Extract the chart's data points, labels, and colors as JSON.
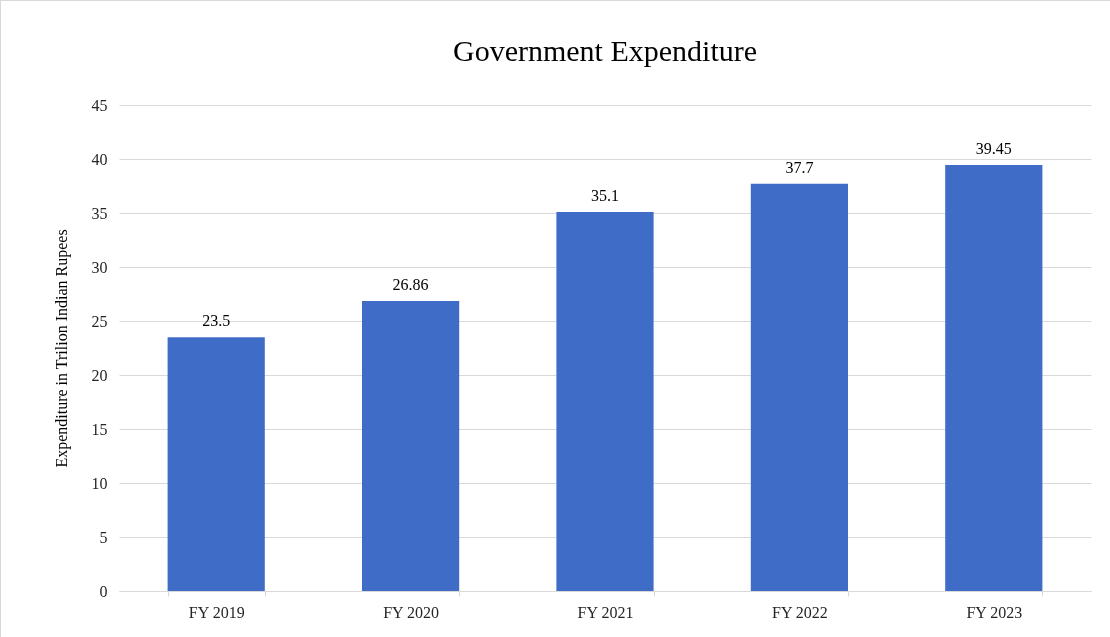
{
  "chart_data": {
    "type": "bar",
    "title": "Government  Expenditure",
    "ylabel": "Expenditure in Trilion Indian Rupees",
    "categories": [
      "FY 2019",
      "FY 2020",
      "FY 2021",
      "FY 2022",
      "FY 2023"
    ],
    "values": [
      23.5,
      26.86,
      35.1,
      37.7,
      39.45
    ],
    "color": "#3f6cc7",
    "ylim": [
      0,
      45
    ],
    "yticks": [
      0,
      5,
      10,
      15,
      20,
      25,
      30,
      35,
      40,
      45
    ],
    "grid": "y",
    "data_labels": true
  }
}
